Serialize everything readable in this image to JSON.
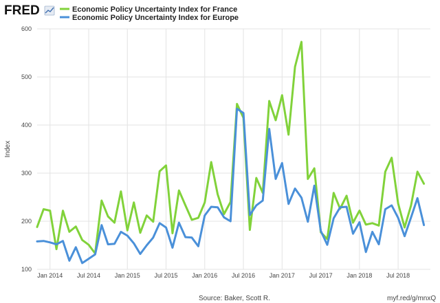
{
  "header": {
    "logo": "FRED"
  },
  "colors": {
    "france": "#81d23a",
    "europe": "#4a90d9"
  },
  "icons": {
    "logo_mark": "chart-logo-icon"
  },
  "footer": {
    "source": "Source: Baker, Scott R.",
    "url": "myf.red/g/mnxQ"
  },
  "chart_data": {
    "type": "line",
    "ylabel": "Index",
    "ylim": [
      100,
      600
    ],
    "yticks": [
      100,
      200,
      300,
      400,
      500,
      600
    ],
    "grid": true,
    "legend_placement": "top-left",
    "xlim": [
      "2013-11",
      "2018-12"
    ],
    "xticks": [
      {
        "label": "Jan 2014",
        "date": "2014-01"
      },
      {
        "label": "Jul 2014",
        "date": "2014-07"
      },
      {
        "label": "Jan 2015",
        "date": "2015-01"
      },
      {
        "label": "Jul 2015",
        "date": "2015-07"
      },
      {
        "label": "Jan 2016",
        "date": "2016-01"
      },
      {
        "label": "Jul 2016",
        "date": "2016-07"
      },
      {
        "label": "Jan 2017",
        "date": "2017-01"
      },
      {
        "label": "Jul 2017",
        "date": "2017-07"
      },
      {
        "label": "Jan 2018",
        "date": "2018-01"
      },
      {
        "label": "Jul 2018",
        "date": "2018-07"
      }
    ],
    "x": [
      "2013-11",
      "2013-12",
      "2014-01",
      "2014-02",
      "2014-03",
      "2014-04",
      "2014-05",
      "2014-06",
      "2014-07",
      "2014-08",
      "2014-09",
      "2014-10",
      "2014-11",
      "2014-12",
      "2015-01",
      "2015-02",
      "2015-03",
      "2015-04",
      "2015-05",
      "2015-06",
      "2015-07",
      "2015-08",
      "2015-09",
      "2015-10",
      "2015-11",
      "2015-12",
      "2016-01",
      "2016-02",
      "2016-03",
      "2016-04",
      "2016-05",
      "2016-06",
      "2016-07",
      "2016-08",
      "2016-09",
      "2016-10",
      "2016-11",
      "2016-12",
      "2017-01",
      "2017-02",
      "2017-03",
      "2017-04",
      "2017-05",
      "2017-06",
      "2017-07",
      "2017-08",
      "2017-09",
      "2017-10",
      "2017-11",
      "2017-12",
      "2018-01",
      "2018-02",
      "2018-03",
      "2018-04",
      "2018-05",
      "2018-06",
      "2018-07",
      "2018-08",
      "2018-09",
      "2018-10",
      "2018-11",
      "2018-12"
    ],
    "series": [
      {
        "name": "Economic Policy Uncertainty Index for France",
        "color": "#81d23a",
        "values": [
          188,
          225,
          222,
          142,
          222,
          178,
          189,
          161,
          151,
          133,
          243,
          210,
          197,
          262,
          181,
          239,
          176,
          212,
          199,
          304,
          316,
          175,
          264,
          233,
          203,
          207,
          239,
          323,
          256,
          215,
          240,
          444,
          415,
          182,
          290,
          259,
          450,
          410,
          462,
          380,
          521,
          573,
          288,
          310,
          177,
          163,
          259,
          226,
          253,
          197,
          222,
          193,
          196,
          191,
          303,
          332,
          237,
          187,
          233,
          303,
          278,
          null
        ]
      },
      {
        "name": "Economic Policy Uncertainty Index for Europe",
        "color": "#4a90d9",
        "values": [
          158,
          159,
          156,
          152,
          159,
          118,
          146,
          113,
          122,
          131,
          192,
          152,
          153,
          178,
          170,
          154,
          132,
          150,
          166,
          196,
          187,
          145,
          197,
          167,
          166,
          148,
          212,
          230,
          229,
          208,
          200,
          434,
          425,
          213,
          233,
          243,
          392,
          288,
          321,
          236,
          268,
          249,
          199,
          274,
          180,
          151,
          206,
          229,
          230,
          174,
          198,
          136,
          178,
          152,
          225,
          233,
          207,
          169,
          208,
          248,
          192,
          null
        ]
      }
    ]
  }
}
